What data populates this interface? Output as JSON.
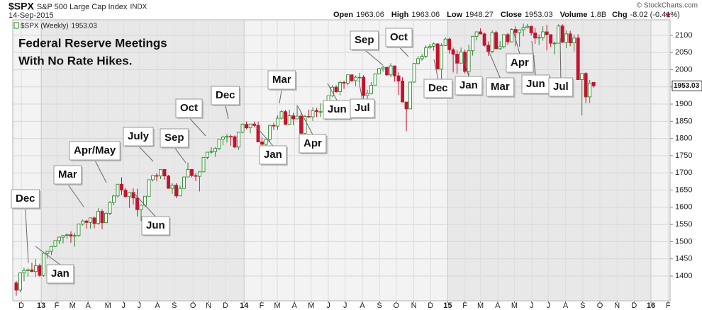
{
  "chart_data": {
    "type": "candlestick",
    "header": {
      "symbol": "$SPX",
      "name": "S&P 500 Large Cap Index",
      "exchange": "INDX",
      "date": "14-Sep-2015",
      "open_label": "Open",
      "open": 1963.06,
      "high_label": "High",
      "high": 1963.06,
      "low_label": "Low",
      "low": 1948.27,
      "close_label": "Close",
      "close": 1953.03,
      "volume_label": "Volume",
      "volume": "1.8B",
      "chg_label": "Chg",
      "chg": -8.02,
      "chg_pct": "(-0.41%)",
      "credit": "© StockCharts.com"
    },
    "legend_label": "$SPX (Weekly)",
    "title": "Federal Reserve Meetings",
    "subtitle": "With No Rate Hikes.",
    "annotations": [
      "Dec",
      "Jan",
      "Mar",
      "Apr/May",
      "July",
      "Jun",
      "Sep",
      "Oct",
      "Dec",
      "Jan",
      "Mar",
      "Apr",
      "Jun",
      "Jul",
      "Sep",
      "Oct",
      "Dec",
      "Jan",
      "Mar",
      "Apr",
      "Jun",
      "Jul"
    ],
    "up_color": "#2a8a2a",
    "down_color": "#c4122f",
    "grid": true,
    "ylim": [
      1328,
      2145
    ],
    "yticks": [
      1400,
      1450,
      1500,
      1550,
      1600,
      1650,
      1700,
      1750,
      1800,
      1850,
      1900,
      1950,
      2000,
      2050,
      2100
    ],
    "xlim": [
      -0.9,
      167.6
    ],
    "xticks": [
      {
        "value": 1.3,
        "label": "D"
      },
      {
        "value": 6.4,
        "label": "13"
      },
      {
        "value": 10.4,
        "label": "F"
      },
      {
        "value": 14.4,
        "label": "M"
      },
      {
        "value": 18.4,
        "label": "A"
      },
      {
        "value": 23.5,
        "label": "M"
      },
      {
        "value": 27.5,
        "label": "J"
      },
      {
        "value": 31.5,
        "label": "J"
      },
      {
        "value": 36.2,
        "label": "A"
      },
      {
        "value": 40.5,
        "label": "S"
      },
      {
        "value": 45.3,
        "label": "O"
      },
      {
        "value": 49.3,
        "label": "N"
      },
      {
        "value": 53.6,
        "label": "D"
      },
      {
        "value": 58.4,
        "label": "14"
      },
      {
        "value": 62.9,
        "label": "F"
      },
      {
        "value": 66.9,
        "label": "M"
      },
      {
        "value": 71.3,
        "label": "A"
      },
      {
        "value": 75.6,
        "label": "M"
      },
      {
        "value": 80.0,
        "label": "J"
      },
      {
        "value": 84.3,
        "label": "J"
      },
      {
        "value": 88.7,
        "label": "A"
      },
      {
        "value": 93.1,
        "label": "S"
      },
      {
        "value": 97.4,
        "label": "O"
      },
      {
        "value": 101.9,
        "label": "N"
      },
      {
        "value": 106.2,
        "label": "D"
      },
      {
        "value": 110.6,
        "label": "15"
      },
      {
        "value": 115.0,
        "label": "F"
      },
      {
        "value": 119.0,
        "label": "M"
      },
      {
        "value": 123.4,
        "label": "A"
      },
      {
        "value": 127.7,
        "label": "M"
      },
      {
        "value": 132.1,
        "label": "J"
      },
      {
        "value": 136.4,
        "label": "J"
      },
      {
        "value": 140.8,
        "label": "A"
      },
      {
        "value": 145.2,
        "label": "S"
      },
      {
        "value": 149.6,
        "label": "O"
      },
      {
        "value": 154.0,
        "label": "N"
      },
      {
        "value": 158.4,
        "label": "D"
      },
      {
        "value": 162.7,
        "label": "16"
      },
      {
        "value": 167.1,
        "label": "F"
      }
    ],
    "open": [
      1380,
      1359,
      1409,
      1416,
      1418,
      1413,
      1430,
      1402,
      1466,
      1472,
      1486,
      1503,
      1513,
      1518,
      1520,
      1516,
      1518,
      1551,
      1560,
      1556,
      1569,
      1553,
      1588,
      1555,
      1582,
      1614,
      1633,
      1667,
      1650,
      1631,
      1643,
      1627,
      1593,
      1606,
      1632,
      1680,
      1692,
      1691,
      1710,
      1691,
      1655,
      1664,
      1633,
      1655,
      1688,
      1710,
      1692,
      1690,
      1703,
      1745,
      1760,
      1762,
      1771,
      1798,
      1804,
      1806,
      1805,
      1775,
      1818,
      1841,
      1831,
      1842,
      1838,
      1790,
      1783,
      1797,
      1838,
      1836,
      1859,
      1878,
      1841,
      1866,
      1857,
      1865,
      1815,
      1864,
      1863,
      1881,
      1878,
      1878,
      1900,
      1924,
      1949,
      1936,
      1963,
      1961,
      1985,
      1968,
      1978,
      1978,
      1925,
      1931,
      1955,
      1988,
      2003,
      2007,
      1985,
      2011,
      1982,
      1967,
      1906,
      1886,
      1964,
      2018,
      2032,
      2039,
      2064,
      2068,
      2075,
      2002,
      2070,
      2089,
      2058,
      2045,
      2019,
      2051,
      1995,
      2055,
      2097,
      2110,
      2104,
      2071,
      2053,
      2108,
      2061,
      2067,
      2102,
      2081,
      2117,
      2108,
      2116,
      2123,
      2126,
      2107,
      2092,
      2094,
      2110,
      2102,
      2077,
      2077,
      2127,
      2080,
      2104,
      2078,
      2092,
      1971,
      1989,
      1921,
      1963.06
    ],
    "high": [
      1386,
      1410,
      1424,
      1423,
      1439,
      1449,
      1436,
      1467,
      1472,
      1487,
      1503,
      1515,
      1519,
      1524,
      1530,
      1526,
      1553,
      1564,
      1563,
      1570,
      1573,
      1597,
      1594,
      1586,
      1618,
      1635,
      1667,
      1687,
      1656,
      1644,
      1655,
      1654,
      1607,
      1633,
      1680,
      1693,
      1698,
      1710,
      1710,
      1694,
      1670,
      1670,
      1663,
      1688,
      1730,
      1711,
      1698,
      1704,
      1745,
      1760,
      1775,
      1775,
      1799,
      1808,
      1813,
      1811,
      1809,
      1818,
      1844,
      1849,
      1843,
      1849,
      1849,
      1804,
      1798,
      1840,
      1846,
      1867,
      1883,
      1883,
      1884,
      1875,
      1897,
      1875,
      1869,
      1884,
      1891,
      1889,
      1902,
      1901,
      1924,
      1955,
      1955,
      1968,
      1968,
      1985,
      1986,
      1983,
      1991,
      1984,
      1942,
      1964,
      1989,
      2005,
      2012,
      2008,
      2019,
      2011,
      1992,
      1978,
      1906,
      1965,
      2019,
      2040,
      2046,
      2071,
      2075,
      2079,
      2077,
      2077,
      2094,
      2093,
      2064,
      2057,
      2064,
      2058,
      2072,
      2097,
      2110,
      2120,
      2108,
      2082,
      2114,
      2113,
      2083,
      2102,
      2107,
      2120,
      2126,
      2117,
      2134,
      2133,
      2127,
      2121,
      2103,
      2126,
      2130,
      2102,
      2082,
      2132,
      2132,
      2114,
      2113,
      2102,
      2103,
      1989,
      1993,
      1970,
      1963.06
    ],
    "low": [
      1343,
      1353,
      1385,
      1398,
      1411,
      1398,
      1398,
      1398,
      1451,
      1461,
      1484,
      1493,
      1495,
      1508,
      1497,
      1485,
      1514,
      1547,
      1538,
      1538,
      1539,
      1549,
      1536,
      1555,
      1577,
      1606,
      1628,
      1635,
      1629,
      1598,
      1608,
      1573,
      1560,
      1601,
      1632,
      1675,
      1676,
      1682,
      1680,
      1655,
      1639,
      1627,
      1633,
      1653,
      1687,
      1687,
      1676,
      1646,
      1702,
      1740,
      1755,
      1747,
      1766,
      1780,
      1788,
      1779,
      1772,
      1767,
      1815,
      1827,
      1815,
      1832,
      1790,
      1770,
      1737,
      1791,
      1824,
      1825,
      1855,
      1839,
      1839,
      1839,
      1856,
      1814,
      1815,
      1860,
      1851,
      1862,
      1862,
      1873,
      1899,
      1920,
      1933,
      1925,
      1944,
      1955,
      1964,
      1952,
      1965,
      1916,
      1904,
      1928,
      1955,
      1986,
      1994,
      1982,
      1978,
      1965,
      1926,
      1906,
      1821,
      1886,
      1962,
      2015,
      2026,
      2034,
      2060,
      2055,
      2002,
      1973,
      2070,
      2047,
      1992,
      1988,
      2019,
      1989,
      1981,
      2041,
      2085,
      2103,
      2067,
      2040,
      2048,
      2061,
      2057,
      2062,
      2072,
      2079,
      2068,
      2067,
      2097,
      2120,
      2099,
      2075,
      2072,
      2084,
      2056,
      2066,
      2044,
      2077,
      2077,
      2063,
      2068,
      2053,
      1971,
      1867,
      1903,
      1903,
      1948.27
    ],
    "close": [
      1359,
      1409,
      1416,
      1418,
      1413,
      1430,
      1402,
      1466,
      1472,
      1486,
      1503,
      1513,
      1518,
      1520,
      1516,
      1518,
      1551,
      1560,
      1556,
      1569,
      1553,
      1588,
      1555,
      1582,
      1614,
      1633,
      1667,
      1650,
      1631,
      1643,
      1627,
      1593,
      1606,
      1632,
      1680,
      1692,
      1691,
      1710,
      1691,
      1655,
      1664,
      1633,
      1655,
      1688,
      1710,
      1692,
      1690,
      1703,
      1745,
      1760,
      1762,
      1771,
      1798,
      1804,
      1806,
      1805,
      1775,
      1818,
      1841,
      1831,
      1842,
      1838,
      1790,
      1783,
      1797,
      1838,
      1836,
      1859,
      1878,
      1841,
      1866,
      1857,
      1865,
      1815,
      1864,
      1863,
      1881,
      1878,
      1878,
      1900,
      1924,
      1949,
      1936,
      1963,
      1961,
      1985,
      1968,
      1978,
      1978,
      1925,
      1931,
      1955,
      1988,
      2003,
      2007,
      1985,
      2011,
      1982,
      1967,
      1906,
      1886,
      1964,
      2018,
      2032,
      2039,
      2064,
      2068,
      2075,
      2002,
      2070,
      2089,
      2058,
      2045,
      2019,
      2051,
      1995,
      2055,
      2097,
      2110,
      2104,
      2071,
      2053,
      2108,
      2061,
      2067,
      2102,
      2081,
      2117,
      2108,
      2116,
      2123,
      2126,
      2107,
      2092,
      2094,
      2110,
      2102,
      2077,
      2077,
      2127,
      2080,
      2104,
      2078,
      2092,
      1971,
      1989,
      1921,
      1961,
      1953.03
    ]
  }
}
